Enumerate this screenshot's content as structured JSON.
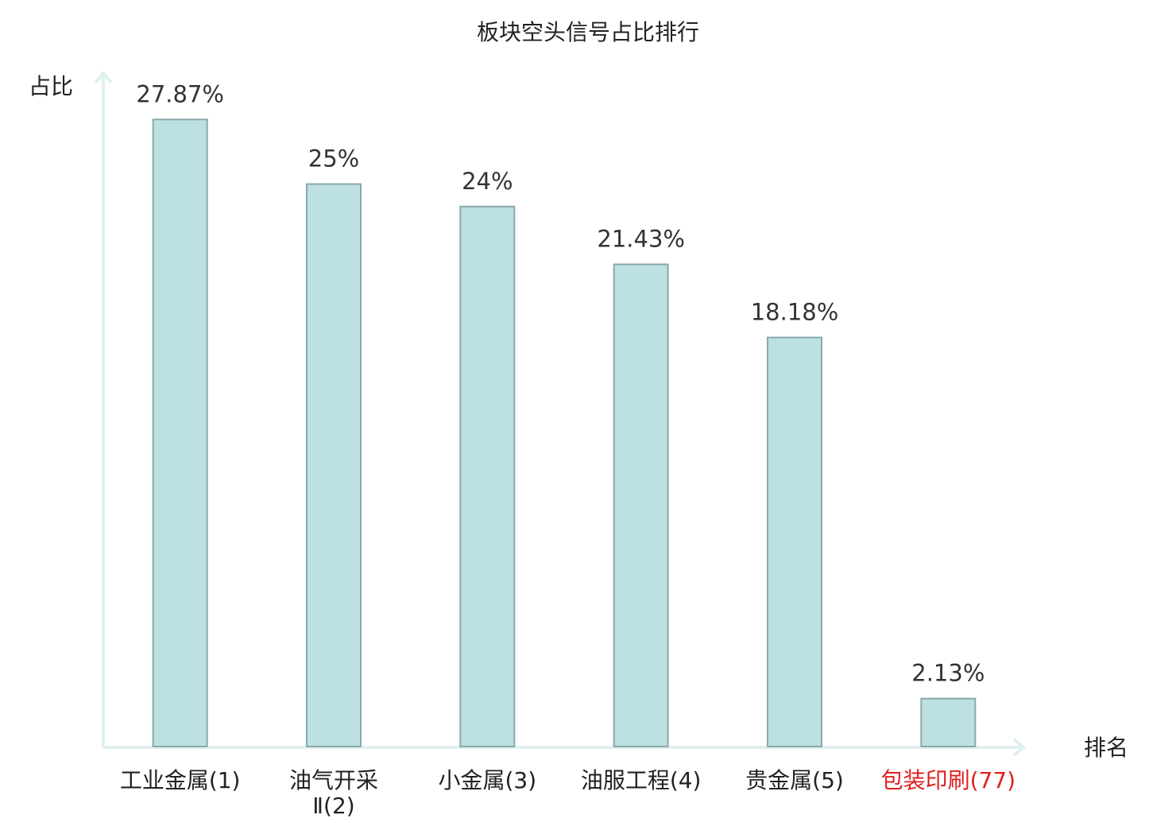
{
  "chart_data": {
    "type": "bar",
    "title": "板块空头信号占比排行",
    "y_label": "占比",
    "x_label": "排名",
    "categories": [
      "工业金属(1)",
      "油气开采\nⅡ(2)",
      "小金属(3)",
      "油服工程(4)",
      "贵金属(5)",
      "包装印刷(77)"
    ],
    "category_colors": [
      "#222222",
      "#222222",
      "#222222",
      "#222222",
      "#222222",
      "#e02020"
    ],
    "values": [
      27.87,
      25,
      24,
      21.43,
      18.18,
      2.13
    ],
    "value_labels": [
      "27.87%",
      "25%",
      "24%",
      "21.43%",
      "18.18%",
      "2.13%"
    ],
    "color": "#bde0e3",
    "edge_color": "#8aa8ab",
    "ylim": [
      0,
      30
    ]
  }
}
